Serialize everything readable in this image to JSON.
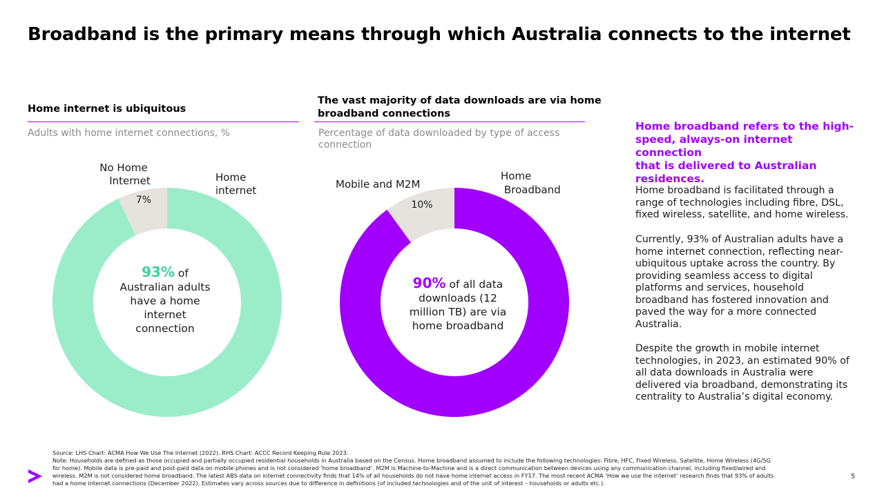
{
  "title": "Broadband is the primary means through which Australia connects to the internet",
  "colors": {
    "accent": "#a100ff",
    "mint": "#9bedc9",
    "mint_text": "#3cd39a",
    "grey_slice": "#e6e3de"
  },
  "left_panel": {
    "heading": "Home internet is ubiquitous",
    "subtitle": "Adults with home internet connections, %",
    "label_no_home_1": "No Home",
    "label_no_home_2": "Internet",
    "label_no_home_pct": "7%",
    "label_home_1": "Home",
    "label_home_2": "internet",
    "center_pct": "93%",
    "center_text_1": "of",
    "center_text_2": "Australian adults",
    "center_text_3": "have a home",
    "center_text_4": "internet",
    "center_text_5": "connection"
  },
  "right_panel": {
    "heading_1": "The vast majority of data downloads are via home",
    "heading_2": "broadband connections",
    "subtitle_1": "Percentage of data downloaded by type of access",
    "subtitle_2": "connection",
    "label_mobile": "Mobile and M2M",
    "label_mobile_pct": "10%",
    "label_home_1": "Home",
    "label_home_2": "Broadband",
    "center_pct": "90%",
    "center_text_1": "of all data",
    "center_text_2": "downloads (12",
    "center_text_3": "million TB) are via",
    "center_text_4": "home broadband"
  },
  "chart_data": [
    {
      "type": "pie",
      "title": "Home internet is ubiquitous",
      "subtitle": "Adults with home internet connections, %",
      "categories": [
        "Home internet",
        "No Home Internet"
      ],
      "values": [
        93,
        7
      ],
      "colors": [
        "#9bedc9",
        "#e6e3de"
      ]
    },
    {
      "type": "pie",
      "title": "The vast majority of data downloads are via home broadband connections",
      "subtitle": "Percentage of data downloaded by type of access connection",
      "categories": [
        "Home Broadband",
        "Mobile and M2M"
      ],
      "values": [
        90,
        10
      ],
      "colors": [
        "#a100ff",
        "#e6e3de"
      ]
    }
  ],
  "sidebar": {
    "heading_1": "Home broadband refers to the high-",
    "heading_2": "speed, always-on internet connection",
    "heading_3": "that is delivered to Australian",
    "heading_4": "residences.",
    "para1_1": "Home broadband is facilitated through a",
    "para1_2": "range of technologies including fibre, DSL,",
    "para1_3": "fixed wireless, satellite, and home wireless.",
    "para2_1": "Currently, 93% of Australian adults have a",
    "para2_2": "home internet connection, reflecting near-",
    "para2_3": "ubiquitous uptake across the country. By",
    "para2_4": "providing seamless access to digital",
    "para2_5": "platforms and services, household",
    "para2_6": "broadband has fostered innovation and",
    "para2_7": "paved the way for a more connected",
    "para2_8": "Australia.",
    "para3_1": "Despite the growth in mobile internet",
    "para3_2": "technologies, in 2023, an estimated 90% of",
    "para3_3": "all data downloads in Australia were",
    "para3_4": "delivered via broadband, demonstrating its",
    "para3_5": "centrality to Australia’s digital economy."
  },
  "footer": {
    "source": "Source: LHS Chart: ACMA How We Use The Internet (2022). RHS Chart: ACCC Record Keeping Rule 2023.",
    "note_1": "Note: Households are defined as those occupied and partially occupied residential households in Australia based on the Census. Home broadband assumed to include the following technologies:  Fibre, HFC, Fixed Wireless, Satellite, Home Wireless (4G/5G",
    "note_2": "for home). Mobile data is pre-paid and post-paid data on mobile phones and is not considered ‘home broadband’. M2M is Machine-to-Machine and is a direct communication between devices using any communication channel, including fixed/wired and",
    "note_3": "wireless. M2M is not considered home broadband. The latest ABS data on internet connectivity finds that 14% of all households do not have home internet access in FY17. The most recent ACMA ‘How we use the internet’ research finds that 93% of adults",
    "note_4": "had a home internet connections (December 2022). Estimates vary across sources due to difference in definitions (of included technologies and of the unit of interest – households or adults etc.).",
    "page_number": "5"
  },
  "logo": {
    "icon": "accenture-chevron-icon"
  }
}
